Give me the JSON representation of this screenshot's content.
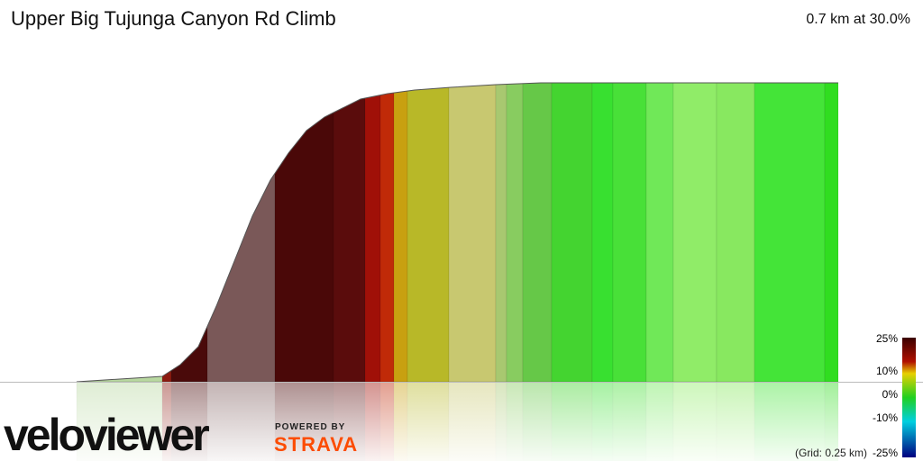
{
  "header": {
    "title": "Upper Big Tujunga Canyon Rd Climb",
    "summary": "0.7 km at 30.0%"
  },
  "legend": {
    "labels": [
      "25%",
      "10%",
      "0%",
      "-10%",
      "-25%"
    ]
  },
  "footer": {
    "grid_note": "(Grid: 0.25 km)"
  },
  "logo": {
    "brand": "veloviewer",
    "powered_by": "POWERED BY",
    "strava": "STRAVA"
  }
}
